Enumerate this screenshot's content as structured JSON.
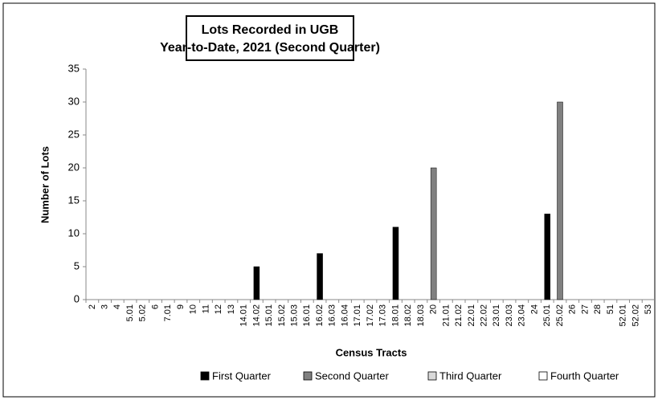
{
  "chart_data": {
    "type": "bar",
    "title": [
      "Lots Recorded in UGB",
      "Year-to-Date, 2021 (Second Quarter)"
    ],
    "x_label": "Census Tracts",
    "y_label": "Number of Lots",
    "categories": [
      "2",
      "3",
      "4",
      "5.01",
      "5.02",
      "6",
      "7.01",
      "9",
      "10",
      "11",
      "12",
      "13",
      "14.01",
      "14.02",
      "15.01",
      "15.02",
      "15.03",
      "16.01",
      "16.02",
      "16.03",
      "16.04",
      "17.01",
      "17.02",
      "17.03",
      "18.01",
      "18.02",
      "18.03",
      "20",
      "21.01",
      "21.02",
      "22.01",
      "22.02",
      "23.01",
      "23.03",
      "23.04",
      "24",
      "25.01",
      "25.02",
      "26",
      "27",
      "28",
      "51",
      "52.01",
      "52.02",
      "53"
    ],
    "series": [
      {
        "name": "First Quarter",
        "color": "#000000",
        "values": [
          null,
          null,
          null,
          null,
          null,
          null,
          null,
          null,
          null,
          null,
          null,
          null,
          null,
          5,
          null,
          null,
          null,
          null,
          7,
          null,
          null,
          null,
          null,
          null,
          11,
          null,
          null,
          null,
          null,
          null,
          null,
          null,
          null,
          null,
          null,
          null,
          13,
          null,
          null,
          null,
          null,
          null,
          null,
          null,
          null
        ]
      },
      {
        "name": "Second Quarter",
        "color": "#808080",
        "values": [
          null,
          null,
          null,
          null,
          null,
          null,
          null,
          null,
          null,
          null,
          null,
          null,
          null,
          null,
          null,
          null,
          null,
          null,
          null,
          null,
          null,
          null,
          null,
          null,
          null,
          null,
          null,
          20,
          null,
          null,
          null,
          null,
          null,
          null,
          null,
          null,
          null,
          30,
          null,
          null,
          null,
          null,
          null,
          null,
          null
        ]
      },
      {
        "name": "Third Quarter",
        "color": "#d9d9d9",
        "values": [
          null,
          null,
          null,
          null,
          null,
          null,
          null,
          null,
          null,
          null,
          null,
          null,
          null,
          null,
          null,
          null,
          null,
          null,
          null,
          null,
          null,
          null,
          null,
          null,
          null,
          null,
          null,
          null,
          null,
          null,
          null,
          null,
          null,
          null,
          null,
          null,
          null,
          null,
          null,
          null,
          null,
          null,
          null,
          null,
          null
        ]
      },
      {
        "name": "Fourth Quarter",
        "color": "#ffffff",
        "values": [
          null,
          null,
          null,
          null,
          null,
          null,
          null,
          null,
          null,
          null,
          null,
          null,
          null,
          null,
          null,
          null,
          null,
          null,
          null,
          null,
          null,
          null,
          null,
          null,
          null,
          null,
          null,
          null,
          null,
          null,
          null,
          null,
          null,
          null,
          null,
          null,
          null,
          null,
          null,
          null,
          null,
          null,
          null,
          null,
          null
        ]
      }
    ],
    "ylim": [
      0,
      35
    ],
    "yticks": [
      0,
      5,
      10,
      15,
      20,
      25,
      30,
      35
    ],
    "grid": false
  }
}
